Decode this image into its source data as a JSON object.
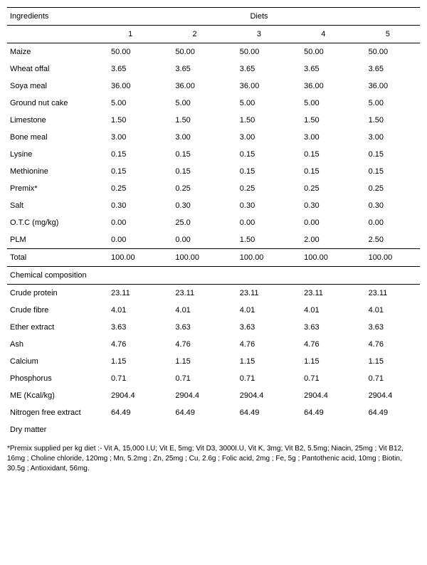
{
  "header": {
    "ingredients": "Ingredients",
    "diets": "Diets",
    "cols": [
      "1",
      "2",
      "3",
      "4",
      "5"
    ]
  },
  "rows": [
    {
      "label": "Maize",
      "v": [
        "50.00",
        "50.00",
        "50.00",
        "50.00",
        "50.00"
      ]
    },
    {
      "label": "Wheat offal",
      "v": [
        "3.65",
        "3.65",
        "3.65",
        "3.65",
        "3.65"
      ]
    },
    {
      "label": "Soya meal",
      "v": [
        "36.00",
        "36.00",
        "36.00",
        "36.00",
        "36.00"
      ]
    },
    {
      "label": "Ground nut cake",
      "v": [
        "5.00",
        "5.00",
        "5.00",
        "5.00",
        "5.00"
      ]
    },
    {
      "label": "Limestone",
      "v": [
        "1.50",
        "1.50",
        "1.50",
        "1.50",
        "1.50"
      ]
    },
    {
      "label": "Bone meal",
      "v": [
        "3.00",
        "3.00",
        "3.00",
        "3.00",
        "3.00"
      ]
    },
    {
      "label": "Lysine",
      "v": [
        "0.15",
        "0.15",
        "0.15",
        "0.15",
        "0.15"
      ]
    },
    {
      "label": "Methionine",
      "v": [
        "0.15",
        "0.15",
        "0.15",
        "0.15",
        "0.15"
      ]
    },
    {
      "label": "Premix*",
      "v": [
        "0.25",
        "0.25",
        "0.25",
        "0.25",
        "0.25"
      ]
    },
    {
      "label": "Salt",
      "v": [
        "0.30",
        "0.30",
        "0.30",
        "0.30",
        "0.30"
      ]
    },
    {
      "label": "O.T.C (mg/kg)",
      "v": [
        "0.00",
        "25.0",
        "0.00",
        "0.00",
        "0.00"
      ]
    },
    {
      "label": "PLM",
      "v": [
        "0.00",
        "0.00",
        "1.50",
        "2.00",
        "2.50"
      ]
    }
  ],
  "total": {
    "label": "Total",
    "v": [
      "100.00",
      "100.00",
      "100.00",
      "100.00",
      "100.00"
    ]
  },
  "section": "Chemical composition",
  "comp": [
    {
      "label": "Crude protein",
      "v": [
        "23.11",
        "23.11",
        "23.11",
        "23.11",
        "23.11"
      ]
    },
    {
      "label": "Crude fibre",
      "v": [
        "4.01",
        "4.01",
        "4.01",
        "4.01",
        "4.01"
      ]
    },
    {
      "label": "Ether extract",
      "v": [
        "3.63",
        "3.63",
        "3.63",
        "3.63",
        "3.63"
      ]
    },
    {
      "label": "Ash",
      "v": [
        "4.76",
        "4.76",
        "4.76",
        "4.76",
        "4.76"
      ]
    },
    {
      "label": "Calcium",
      "v": [
        "1.15",
        "1.15",
        "1.15",
        "1.15",
        "1.15"
      ]
    },
    {
      "label": "Phosphorus",
      "v": [
        "0.71",
        "0.71",
        "0.71",
        "0.71",
        "0.71"
      ]
    },
    {
      "label": "ME (Kcal/kg)",
      "v": [
        "2904.4",
        "2904.4",
        "2904.4",
        "2904.4",
        "2904.4"
      ]
    },
    {
      "label": "Nitrogen free extract",
      "v": [
        "64.49",
        "64.49",
        "64.49",
        "64.49",
        "64.49"
      ]
    },
    {
      "label": "Dry matter",
      "v": [
        "",
        "",
        "",
        "",
        ""
      ]
    }
  ],
  "footnote": "*Premix supplied per kg diet :- Vit A, 15,000 I.U;  Vit E, 5mg;  Vit D3, 3000I.U, Vit K, 3mg; Vit B2, 5.5mg; Niacin, 25mg ; Vit B12, 16mg ; Choline  chloride, 120mg ; Mn, 5.2mg ; Zn, 25mg ; Cu, 2.6g ; Folic acid, 2mg ; Fe, 5g ; Pantothenic acid, 10mg ; Biotin, 30.5g ; Antioxidant, 56mg."
}
